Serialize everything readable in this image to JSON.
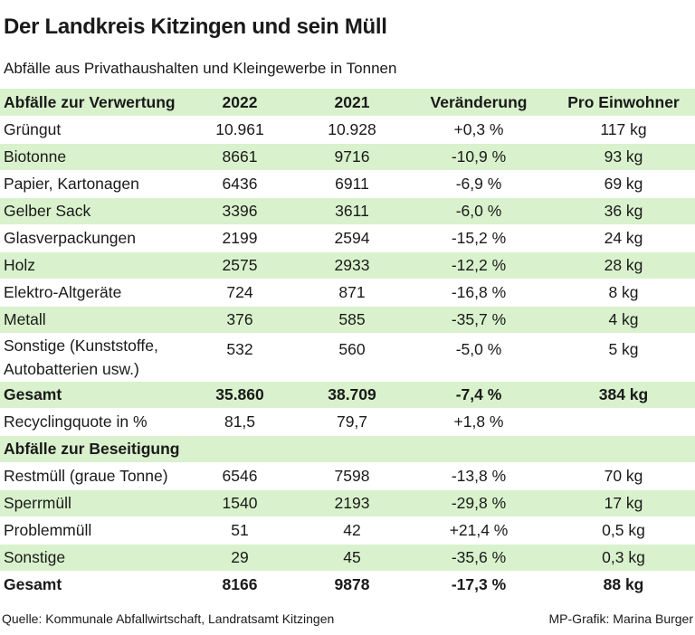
{
  "title": "Der Landkreis Kitzingen und sein Müll",
  "subtitle": "Abfälle aus Privathaushalten und Kleingewerbe in Tonnen",
  "colors": {
    "row_highlight": "#d9f2cd",
    "text": "#1a1a1a",
    "background": "#ffffff"
  },
  "chart_data": {
    "type": "table",
    "title": "Der Landkreis Kitzingen und sein Müll",
    "subtitle": "Abfälle aus Privathaushalten und Kleingewerbe in Tonnen",
    "columns": [
      "Abfälle zur Verwertung",
      "2022",
      "2021",
      "Veränderung",
      "Pro Einwohner"
    ],
    "rows": [
      {
        "cells": [
          "Grüngut",
          "10.961",
          "10.928",
          "+0,3 %",
          "117 kg"
        ],
        "style": "plain"
      },
      {
        "cells": [
          "Biotonne",
          "8661",
          "9716",
          "-10,9 %",
          "93 kg"
        ],
        "style": "green"
      },
      {
        "cells": [
          "Papier, Kartonagen",
          "6436",
          "6911",
          "-6,9 %",
          "69 kg"
        ],
        "style": "plain"
      },
      {
        "cells": [
          "Gelber Sack",
          "3396",
          "3611",
          "-6,0 %",
          "36 kg"
        ],
        "style": "green"
      },
      {
        "cells": [
          "Glasverpackungen",
          "2199",
          "2594",
          "-15,2 %",
          "24 kg"
        ],
        "style": "plain"
      },
      {
        "cells": [
          "Holz",
          "2575",
          "2933",
          "-12,2 %",
          "28 kg"
        ],
        "style": "green"
      },
      {
        "cells": [
          "Elektro-Altgeräte",
          "724",
          "871",
          "-16,8 %",
          "8 kg"
        ],
        "style": "plain"
      },
      {
        "cells": [
          "Metall",
          "376",
          "585",
          "-35,7 %",
          "4 kg"
        ],
        "style": "green"
      },
      {
        "cells": [
          "Sonstige (Kunststoffe, Autobatterien usw.)",
          "532",
          "560",
          "-5,0 %",
          "5 kg"
        ],
        "style": "plain",
        "wrap": true
      },
      {
        "cells": [
          "Gesamt",
          "35.860",
          "38.709",
          "-7,4 %",
          "384 kg"
        ],
        "style": "green-bold"
      },
      {
        "cells": [
          "Recyclingquote in %",
          "81,5",
          "79,7",
          "+1,8 %",
          ""
        ],
        "style": "plain"
      },
      {
        "cells": [
          "Abfälle zur Beseitigung",
          "",
          "",
          "",
          ""
        ],
        "style": "green-bold"
      },
      {
        "cells": [
          "Restmüll (graue Tonne)",
          "6546",
          "7598",
          "-13,8 %",
          "70 kg"
        ],
        "style": "plain"
      },
      {
        "cells": [
          "Sperrmüll",
          "1540",
          "2193",
          "-29,8 %",
          "17 kg"
        ],
        "style": "green"
      },
      {
        "cells": [
          "Problemmüll",
          "51",
          "42",
          "+21,4 %",
          "0,5 kg"
        ],
        "style": "plain"
      },
      {
        "cells": [
          "Sonstige",
          "29",
          "45",
          "-35,6 %",
          "0,3 kg"
        ],
        "style": "green"
      },
      {
        "cells": [
          "Gesamt",
          "8166",
          "9878",
          "-17,3 %",
          "88 kg"
        ],
        "style": "plain-bold"
      }
    ]
  },
  "footer": {
    "source": "Quelle: Kommunale Abfallwirtschaft, Landratsamt Kitzingen",
    "credit": "MP-Grafik: Marina Burger"
  }
}
